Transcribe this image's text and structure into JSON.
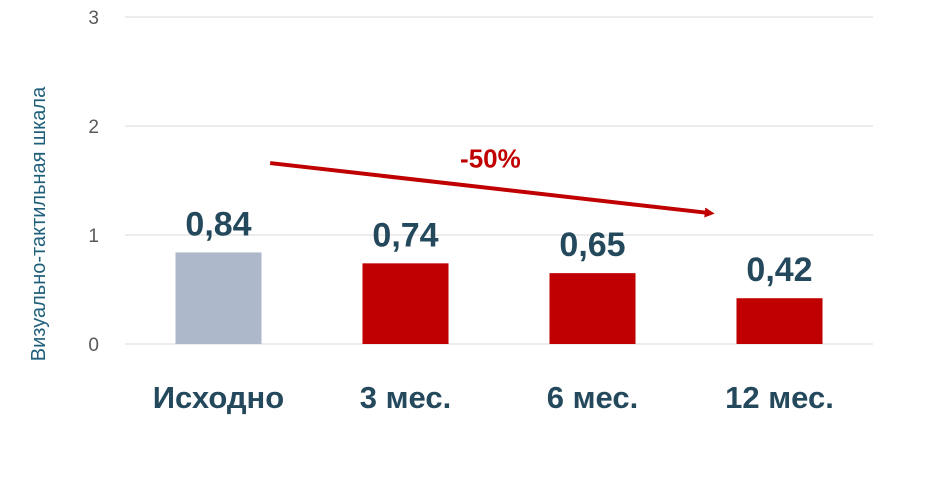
{
  "chart_data": {
    "type": "bar",
    "categories": [
      "Исходно",
      "3 мес.",
      "6 мес.",
      "12 мес."
    ],
    "values": [
      0.84,
      0.74,
      0.65,
      0.42
    ],
    "value_labels": [
      "0,84",
      "0,74",
      "0,65",
      "0,42"
    ],
    "bar_colors": [
      "#adb9ca",
      "#c00000",
      "#c00000",
      "#c00000"
    ],
    "ylabel": "Визуально-тактильная шкала",
    "ylim": [
      0,
      3
    ],
    "yticks": [
      "0",
      "1",
      "2",
      "3"
    ],
    "grid": true,
    "annotation": {
      "text": "-50%",
      "color": "#c00000",
      "arrow_from_category": "Исходно",
      "arrow_to_category": "12 мес."
    }
  }
}
